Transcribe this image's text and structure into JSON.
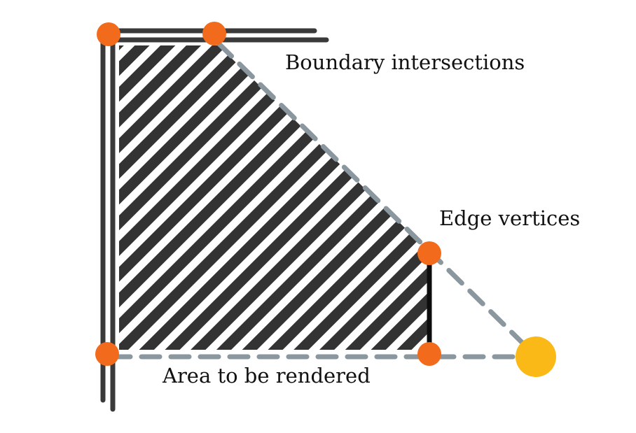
{
  "labels": {
    "boundary_intersections": "Boundary intersections",
    "edge_vertices": "Edge vertices",
    "area_to_be_rendered": "Area to be rendered"
  },
  "colors": {
    "boundary_line": "#3a3a3a",
    "hatch_fill": "#333333",
    "dashed_line": "#8a979e",
    "intersection_dot": "#f26b1d",
    "source_dot": "#fbb917",
    "edge_line": "#0d0d0d",
    "background": "#ffffff"
  },
  "icons": {
    "intersection_marker": "orange-circle-marker",
    "source_marker": "yellow-circle-marker"
  }
}
